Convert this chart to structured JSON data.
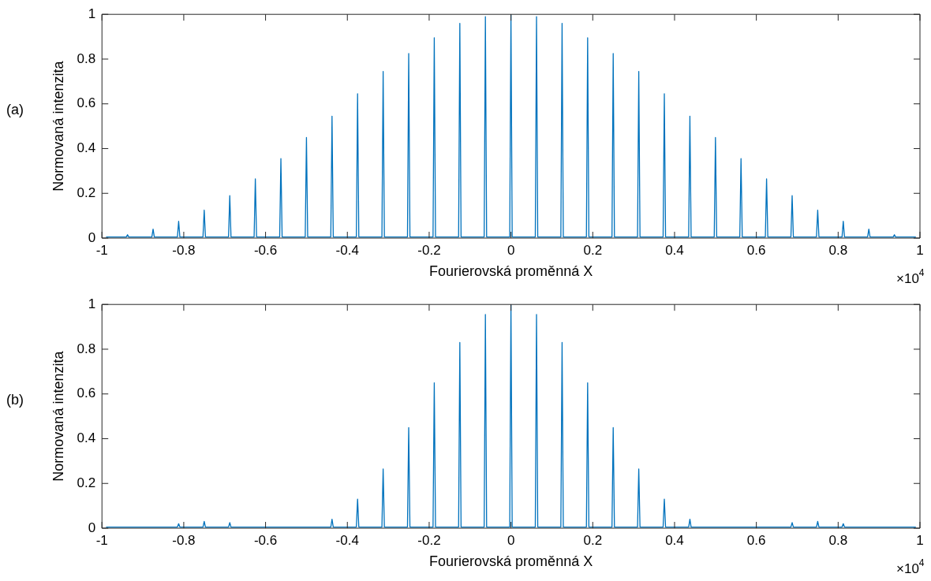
{
  "chart_data": [
    {
      "type": "line",
      "xlabel": "Fourierovská proměnná X",
      "ylabel": "Normovaná intenzita",
      "annotations": [
        "(a)",
        "×10$^{4}$"
      ],
      "xlim": [
        -1,
        1
      ],
      "ylim": [
        0,
        1
      ],
      "xticks": [
        -1,
        -0.8,
        -0.6,
        -0.4,
        -0.2,
        0,
        0.2,
        0.4,
        0.6,
        0.8,
        1
      ],
      "yticks": [
        0,
        0.2,
        0.4,
        0.6,
        0.8,
        1
      ],
      "grid": false,
      "legend": false,
      "marker": "none",
      "line_style": "solid",
      "series": [
        {
          "color": "#0072bd",
          "x": [
            -0.99,
            -0.9405,
            -0.9375,
            -0.9345,
            -0.878,
            -0.875,
            -0.872,
            -0.8155,
            -0.8125,
            -0.8095,
            -0.753,
            -0.75,
            -0.747,
            -0.6905,
            -0.6875,
            -0.6845,
            -0.628,
            -0.625,
            -0.622,
            -0.5655,
            -0.5625,
            -0.5595,
            -0.503,
            -0.5,
            -0.497,
            -0.4405,
            -0.4375,
            -0.4345,
            -0.378,
            -0.375,
            -0.372,
            -0.3155,
            -0.3125,
            -0.3095,
            -0.253,
            -0.25,
            -0.247,
            -0.1905,
            -0.1875,
            -0.1845,
            -0.128,
            -0.125,
            -0.122,
            -0.0655,
            -0.0625,
            -0.0595,
            -0.003,
            0,
            0.003,
            0.0595,
            0.0625,
            0.0655,
            0.122,
            0.125,
            0.128,
            0.1845,
            0.1875,
            0.1905,
            0.247,
            0.25,
            0.253,
            0.3095,
            0.3125,
            0.3155,
            0.372,
            0.375,
            0.378,
            0.4345,
            0.4375,
            0.4405,
            0.497,
            0.5,
            0.503,
            0.5595,
            0.5625,
            0.5655,
            0.622,
            0.625,
            0.628,
            0.6845,
            0.6875,
            0.6905,
            0.747,
            0.75,
            0.753,
            0.8095,
            0.8125,
            0.8155,
            0.872,
            0.875,
            0.878,
            0.9345,
            0.9375,
            0.9405,
            0.99
          ],
          "values": [
            0.005,
            0.005,
            0.015,
            0.005,
            0.005,
            0.04,
            0.005,
            0.005,
            0.075,
            0.005,
            0.005,
            0.125,
            0.005,
            0.005,
            0.19,
            0.005,
            0.005,
            0.265,
            0.005,
            0.005,
            0.355,
            0.005,
            0.005,
            0.45,
            0.005,
            0.005,
            0.545,
            0.005,
            0.005,
            0.645,
            0.005,
            0.005,
            0.745,
            0.005,
            0.005,
            0.825,
            0.005,
            0.005,
            0.895,
            0.005,
            0.005,
            0.96,
            0.005,
            0.005,
            0.99,
            0.005,
            0.005,
            1,
            0.005,
            0.005,
            0.99,
            0.005,
            0.005,
            0.96,
            0.005,
            0.005,
            0.895,
            0.005,
            0.005,
            0.825,
            0.005,
            0.005,
            0.745,
            0.005,
            0.005,
            0.645,
            0.005,
            0.005,
            0.545,
            0.005,
            0.005,
            0.45,
            0.005,
            0.005,
            0.355,
            0.005,
            0.005,
            0.265,
            0.005,
            0.005,
            0.19,
            0.005,
            0.005,
            0.125,
            0.005,
            0.005,
            0.075,
            0.005,
            0.005,
            0.04,
            0.005,
            0.005,
            0.015,
            0.005,
            0.005
          ]
        }
      ]
    },
    {
      "type": "line",
      "xlabel": "Fourierovská proměnná X",
      "ylabel": "Normovaná intenzita",
      "annotations": [
        "(b)",
        "×10$^{4}$"
      ],
      "xlim": [
        -1,
        1
      ],
      "ylim": [
        0,
        1
      ],
      "xticks": [
        -1,
        -0.8,
        -0.6,
        -0.4,
        -0.2,
        0,
        0.2,
        0.4,
        0.6,
        0.8,
        1
      ],
      "yticks": [
        0,
        0.2,
        0.4,
        0.6,
        0.8,
        1
      ],
      "grid": false,
      "legend": false,
      "marker": "none",
      "line_style": "solid",
      "series": [
        {
          "color": "#0072bd",
          "x": [
            -0.99,
            -0.8155,
            -0.8125,
            -0.8095,
            -0.753,
            -0.75,
            -0.747,
            -0.6905,
            -0.6875,
            -0.6845,
            -0.4405,
            -0.4375,
            -0.4345,
            -0.378,
            -0.375,
            -0.372,
            -0.3155,
            -0.3125,
            -0.3095,
            -0.253,
            -0.25,
            -0.247,
            -0.1905,
            -0.1875,
            -0.1845,
            -0.128,
            -0.125,
            -0.122,
            -0.0655,
            -0.0625,
            -0.0595,
            -0.003,
            0,
            0.003,
            0.0595,
            0.0625,
            0.0655,
            0.122,
            0.125,
            0.128,
            0.1845,
            0.1875,
            0.1905,
            0.247,
            0.25,
            0.253,
            0.3095,
            0.3125,
            0.3155,
            0.372,
            0.375,
            0.378,
            0.4345,
            0.4375,
            0.4405,
            0.6845,
            0.6875,
            0.6905,
            0.747,
            0.75,
            0.753,
            0.8095,
            0.8125,
            0.8155,
            0.99
          ],
          "values": [
            0.005,
            0.005,
            0.02,
            0.005,
            0.005,
            0.03,
            0.005,
            0.005,
            0.025,
            0.005,
            0.005,
            0.04,
            0.005,
            0.005,
            0.13,
            0.005,
            0.005,
            0.265,
            0.005,
            0.005,
            0.45,
            0.005,
            0.005,
            0.65,
            0.005,
            0.005,
            0.83,
            0.005,
            0.005,
            0.955,
            0.005,
            0.005,
            1,
            0.005,
            0.005,
            0.955,
            0.005,
            0.005,
            0.83,
            0.005,
            0.005,
            0.65,
            0.005,
            0.005,
            0.45,
            0.005,
            0.005,
            0.265,
            0.005,
            0.005,
            0.13,
            0.005,
            0.005,
            0.04,
            0.005,
            0.005,
            0.025,
            0.005,
            0.005,
            0.03,
            0.005,
            0.005,
            0.02,
            0.005,
            0.005
          ]
        }
      ]
    }
  ]
}
